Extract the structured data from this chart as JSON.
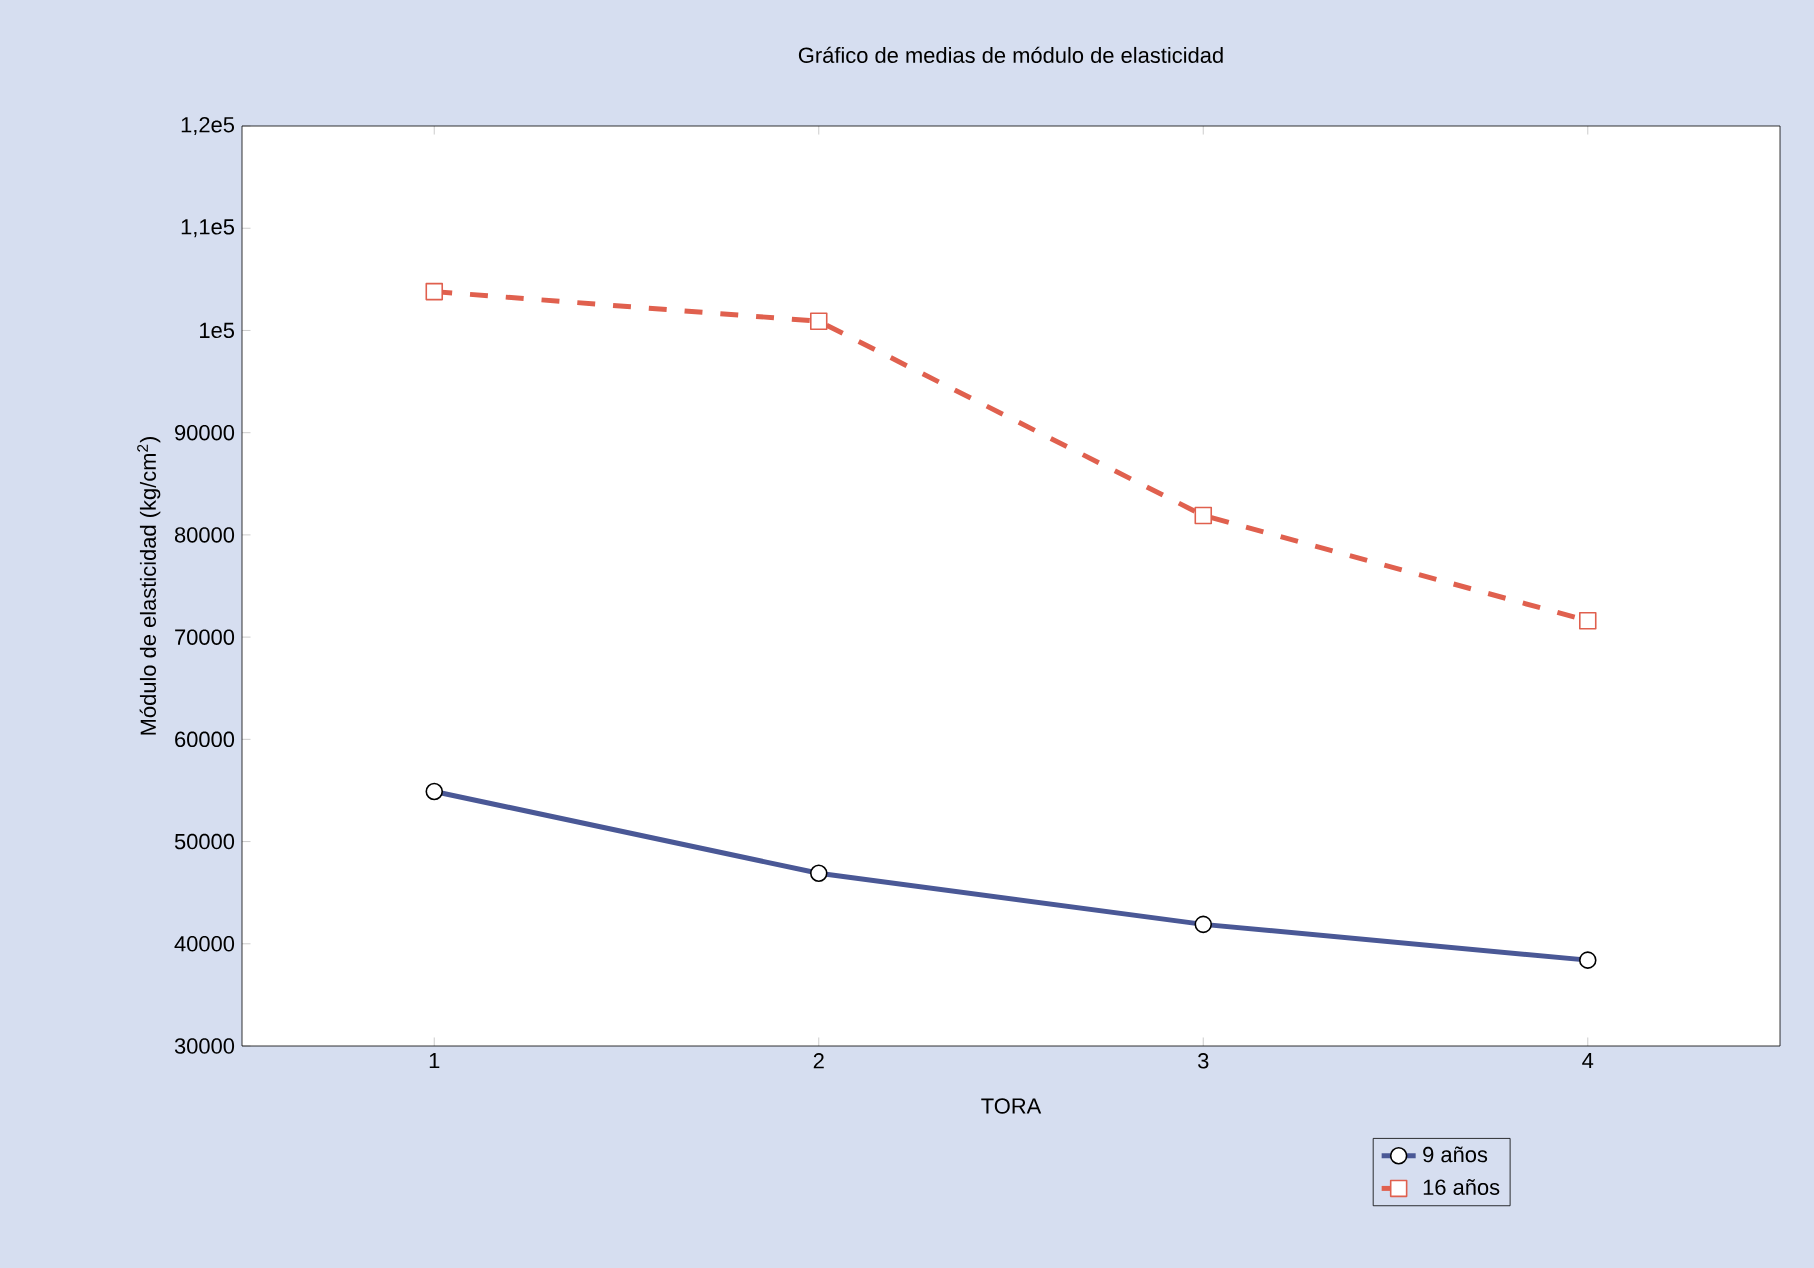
{
  "chart_data": {
    "type": "line",
    "title": "Gráfico de medias de módulo de elasticidad",
    "xlabel": "TORA",
    "ylabel": "Módulo de elasticidad (kg/cm$^{2}$)",
    "x": [
      1,
      2,
      3,
      4
    ],
    "series": [
      {
        "name": "9 años",
        "color": "#4a5896",
        "values": [
          54900,
          46900,
          41900,
          38400
        ],
        "marker": "circle",
        "line_style": "solid"
      },
      {
        "name": "16 años",
        "color": "#e0604e",
        "values": [
          103800,
          100900,
          81900,
          71600
        ],
        "marker": "square",
        "line_style": "dashed"
      }
    ],
    "xlim": [
      0.5,
      4.5
    ],
    "xticks": [
      1,
      2,
      3,
      4
    ],
    "ylim": [
      30000,
      120000
    ],
    "yticks": [
      30000,
      40000,
      50000,
      60000,
      70000,
      80000,
      90000,
      {
        "value": 100000,
        "label": "1e5"
      },
      {
        "value": 110000,
        "label": "1,1e5"
      },
      {
        "value": 120000,
        "label": "1,2e5"
      }
    ],
    "grid": false,
    "legend": "bottom"
  }
}
